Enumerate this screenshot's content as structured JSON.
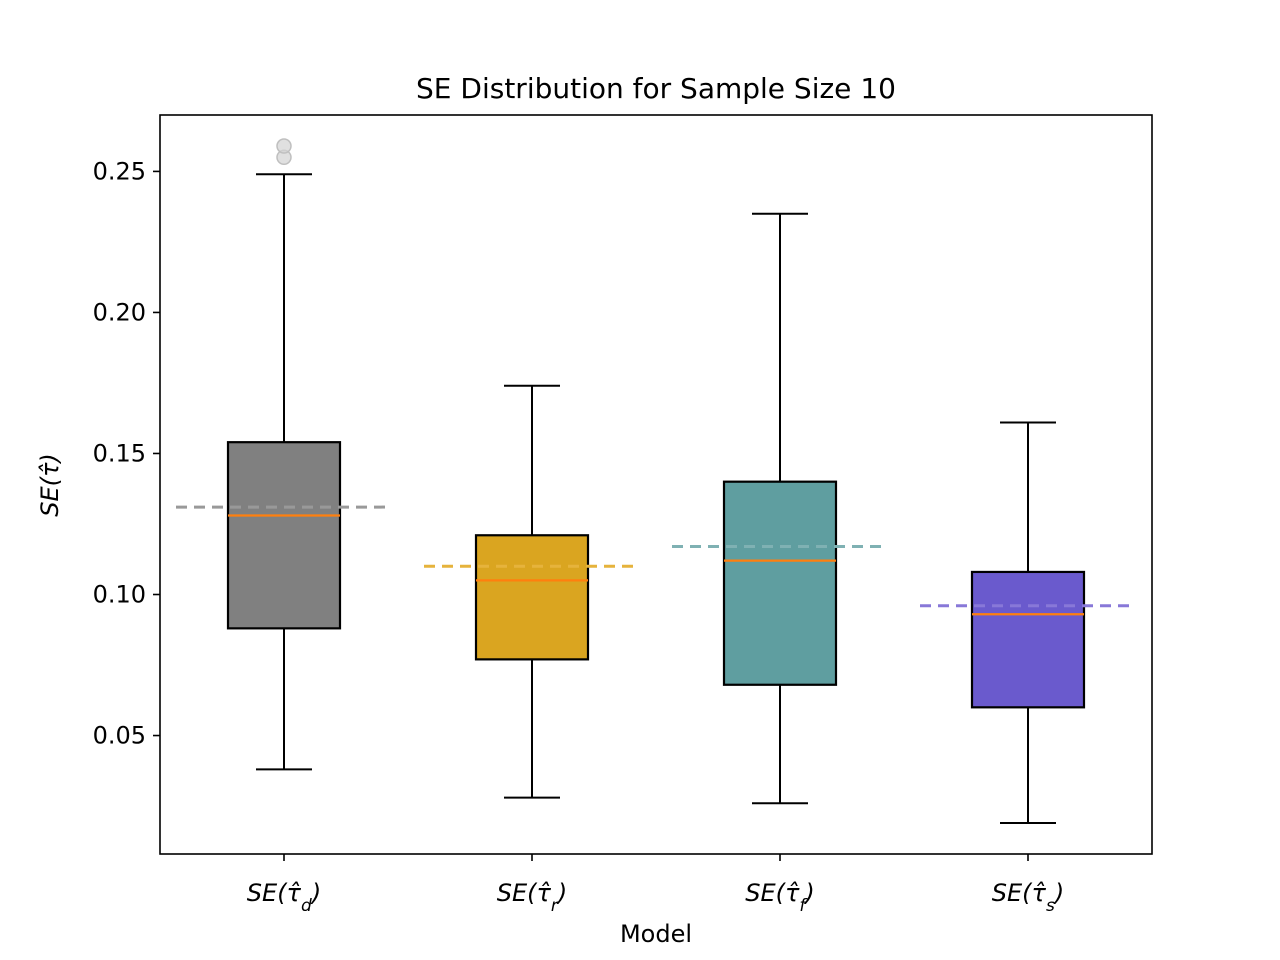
{
  "chart_data": {
    "type": "box",
    "title": "SE Distribution for Sample Size 10",
    "xlabel": "Model",
    "ylabel": "SE(τ̂)",
    "ylim": [
      0.008,
      0.27
    ],
    "yticks": [
      "0.05",
      "0.10",
      "0.15",
      "0.20",
      "0.25"
    ],
    "ytick_values": [
      0.05,
      0.1,
      0.15,
      0.2,
      0.25
    ],
    "grid": false,
    "median_color": "#ff7f0e",
    "series": [
      {
        "label": "SE(τ̂d)",
        "label_base": "SE(τ̂",
        "label_sub": "d",
        "label_close": ")",
        "color": "#808080",
        "mean_line_color": "#999999",
        "whisker_low": 0.038,
        "q1": 0.088,
        "median": 0.128,
        "q3": 0.154,
        "whisker_high": 0.249,
        "mean": 0.131,
        "outliers": [
          0.255,
          0.259
        ]
      },
      {
        "label": "SE(τ̂r)",
        "label_base": "SE(τ̂",
        "label_sub": "r",
        "label_close": ")",
        "color": "#daa520",
        "mean_line_color": "#e6b33c",
        "whisker_low": 0.028,
        "q1": 0.077,
        "median": 0.105,
        "q3": 0.121,
        "whisker_high": 0.174,
        "mean": 0.11,
        "outliers": []
      },
      {
        "label": "SE(τ̂f)",
        "label_base": "SE(τ̂",
        "label_sub": "f",
        "label_close": ")",
        "color": "#5f9ea0",
        "mean_line_color": "#7fb1b3",
        "whisker_low": 0.026,
        "q1": 0.068,
        "median": 0.112,
        "q3": 0.14,
        "whisker_high": 0.235,
        "mean": 0.117,
        "outliers": []
      },
      {
        "label": "SE(τ̂s)",
        "label_base": "SE(τ̂",
        "label_sub": "s",
        "label_close": ")",
        "color": "#6a5acd",
        "mean_line_color": "#8878d8",
        "whisker_low": 0.019,
        "q1": 0.06,
        "median": 0.093,
        "q3": 0.108,
        "whisker_high": 0.161,
        "mean": 0.096,
        "outliers": []
      }
    ]
  }
}
